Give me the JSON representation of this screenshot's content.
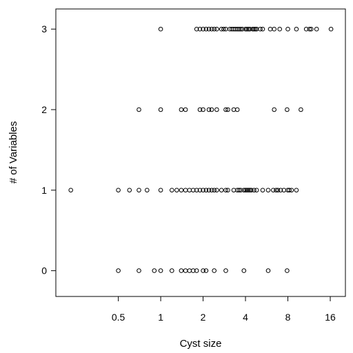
{
  "chart_data": {
    "type": "scatter",
    "title": "",
    "xlabel": "Cyst size",
    "ylabel": "# of Variables",
    "x_scale": "log2",
    "xlim": [
      0.18,
      20.5
    ],
    "ylim": [
      -0.32,
      3.25
    ],
    "x_ticks": [
      0.5,
      1,
      2,
      4,
      8,
      16
    ],
    "x_tick_labels": [
      "0.5",
      "1",
      "2",
      "4",
      "8",
      "16"
    ],
    "y_ticks": [
      0,
      1,
      2,
      3
    ],
    "y_tick_labels": [
      "0",
      "1",
      "2",
      "3"
    ],
    "grid": false,
    "legend": "none",
    "point_color": "#000000",
    "series": [
      {
        "y": 0,
        "x": [
          0.5,
          0.7,
          0.9,
          1.0,
          1.2,
          1.4,
          1.5,
          1.6,
          1.7,
          1.8,
          2.0,
          2.1,
          2.4,
          2.9,
          3.9,
          5.8,
          7.9
        ]
      },
      {
        "y": 1,
        "x": [
          0.23,
          0.5,
          0.6,
          0.7,
          0.8,
          1.0,
          1.2,
          1.3,
          1.4,
          1.5,
          1.6,
          1.7,
          1.8,
          1.9,
          2.0,
          2.1,
          2.2,
          2.3,
          2.4,
          2.5,
          2.7,
          2.9,
          3.0,
          3.3,
          3.5,
          3.6,
          3.7,
          3.9,
          4.0,
          4.1,
          4.2,
          4.3,
          4.4,
          4.6,
          4.8,
          5.3,
          5.8,
          6.3,
          6.6,
          6.8,
          7.1,
          7.5,
          8.0,
          8.2,
          8.5,
          9.2
        ]
      },
      {
        "y": 2,
        "x": [
          0.7,
          1.0,
          1.4,
          1.5,
          1.9,
          2.0,
          2.2,
          2.3,
          2.5,
          2.9,
          3.0,
          3.3,
          3.5,
          6.4,
          7.9,
          9.9
        ]
      },
      {
        "y": 3,
        "x": [
          1.0,
          1.8,
          1.9,
          2.0,
          2.1,
          2.2,
          2.3,
          2.4,
          2.5,
          2.7,
          2.8,
          2.9,
          3.1,
          3.2,
          3.3,
          3.4,
          3.5,
          3.6,
          3.7,
          3.8,
          4.0,
          4.1,
          4.2,
          4.3,
          4.5,
          4.6,
          4.7,
          4.8,
          5.1,
          5.3,
          6.0,
          6.4,
          7.0,
          8.0,
          9.2,
          10.8,
          11.4,
          11.7,
          12.8,
          16.2
        ]
      }
    ]
  }
}
